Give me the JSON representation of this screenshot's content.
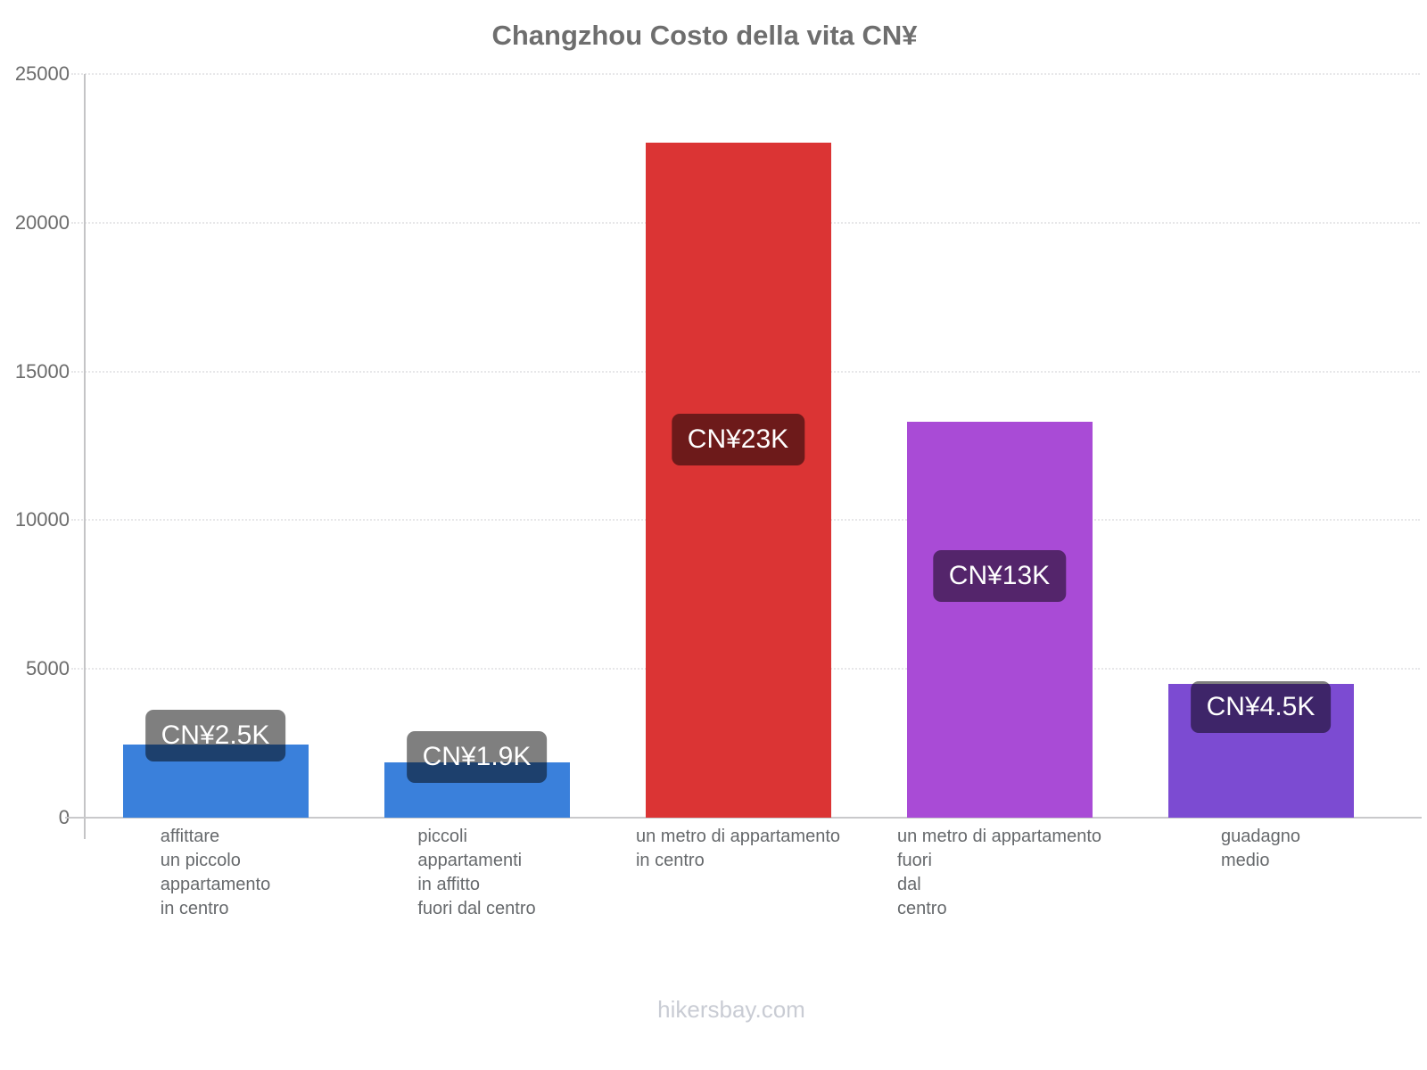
{
  "title": "Changzhou Costo della vita CN¥",
  "footer": "hikersbay.com",
  "chart_data": {
    "type": "bar",
    "title": "Changzhou Costo della vita CN¥",
    "currency": "CN¥",
    "xlabel": "",
    "ylabel": "",
    "ylim": [
      0,
      25000
    ],
    "yticks": [
      0,
      5000,
      10000,
      15000,
      20000,
      25000
    ],
    "grid": "horizontal-dotted",
    "legend": "none",
    "watermark": "hikersbay.com",
    "bars": [
      {
        "category_lines": [
          "affittare",
          "un piccolo",
          "appartamento",
          "in centro"
        ],
        "value": 2450,
        "label": "CN¥2.5K",
        "color": "#3a80db"
      },
      {
        "category_lines": [
          "piccoli",
          "appartamenti",
          "in affitto",
          "fuori dal centro"
        ],
        "value": 1850,
        "label": "CN¥1.9K",
        "color": "#3a80db"
      },
      {
        "category_lines": [
          "un metro di appartamento",
          "in centro"
        ],
        "value": 22700,
        "label": "CN¥23K",
        "color": "#db3434"
      },
      {
        "category_lines": [
          "un metro di appartamento",
          "fuori",
          "dal",
          "centro"
        ],
        "value": 13300,
        "label": "CN¥13K",
        "color": "#a94bd6"
      },
      {
        "category_lines": [
          "guadagno",
          "medio"
        ],
        "value": 4500,
        "label": "CN¥4.5K",
        "color": "#7c4bd2"
      }
    ],
    "colors": {
      "badge_overlay": "rgba(0,0,0,0.5)",
      "badge_text": "#ffffff",
      "axis_line": "#c4c4c6",
      "tick_text": "#6b6b6b",
      "category_text": "#66696c",
      "title_text": "#6e6e6e",
      "watermark_text": "#c9ccd4",
      "gridline": "#e7e7e9"
    }
  }
}
